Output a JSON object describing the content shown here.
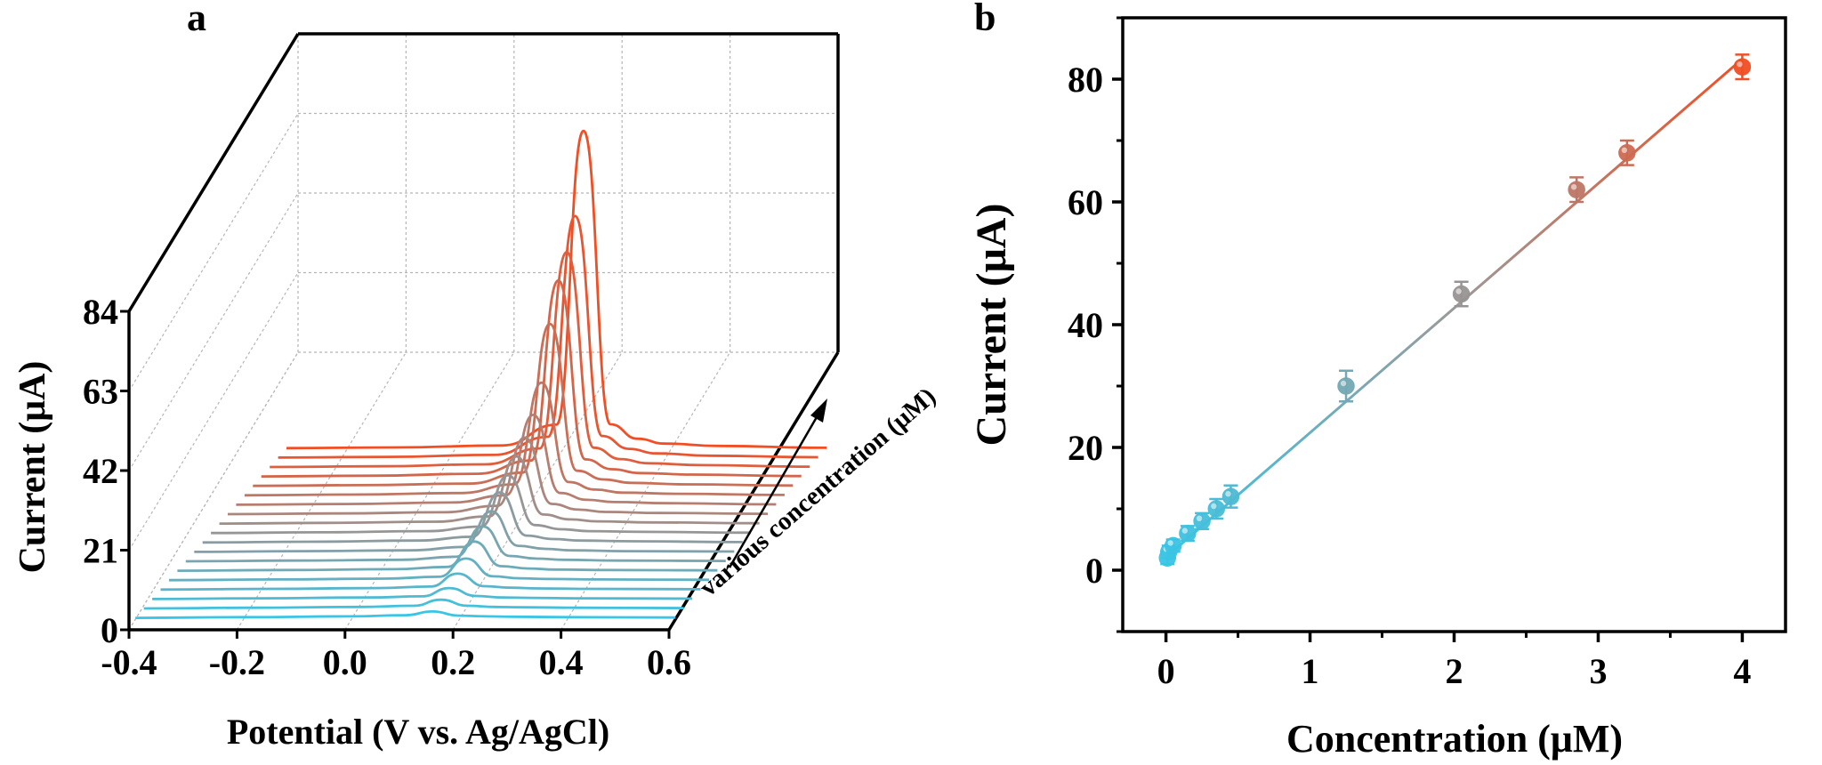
{
  "panels": {
    "a": {
      "label": "a",
      "chart_data": {
        "type": "line",
        "title": "",
        "xlabel": "Potential (V vs. Ag/AgCl)",
        "ylabel": "Current (μA)",
        "zlabel": "various concentration (μM)",
        "xlim": [
          -0.4,
          0.6
        ],
        "ylim": [
          0,
          84
        ],
        "xticks": [
          "-0.4",
          "-0.2",
          "0.0",
          "0.2",
          "0.4",
          "0.6"
        ],
        "yticks": [
          "0",
          "21",
          "42",
          "63",
          "84"
        ],
        "x": [
          -0.4,
          -0.2,
          0.0,
          0.1,
          0.15,
          0.2,
          0.25,
          0.3,
          0.4,
          0.6
        ],
        "series": [
          {
            "values": [
              0.3,
              0.5,
              0.7,
              1.0,
              2.0,
              0.9,
              0.7,
              0.6,
              0.5,
              0.4
            ]
          },
          {
            "values": [
              0.3,
              0.5,
              0.7,
              1.0,
              2.6,
              1.0,
              0.7,
              0.6,
              0.5,
              0.4
            ]
          },
          {
            "values": [
              0.3,
              0.5,
              0.7,
              1.0,
              3.2,
              1.1,
              0.7,
              0.6,
              0.5,
              0.4
            ]
          },
          {
            "values": [
              0.3,
              0.5,
              0.7,
              1.1,
              4.5,
              1.2,
              0.8,
              0.6,
              0.5,
              0.4
            ]
          },
          {
            "values": [
              0.3,
              0.5,
              0.7,
              1.2,
              6.0,
              1.3,
              0.8,
              0.6,
              0.5,
              0.4
            ]
          },
          {
            "values": [
              0.3,
              0.5,
              0.7,
              1.3,
              8.0,
              1.5,
              0.9,
              0.6,
              0.5,
              0.4
            ]
          },
          {
            "values": [
              0.3,
              0.5,
              0.7,
              1.5,
              9.5,
              1.7,
              1.0,
              0.7,
              0.5,
              0.4
            ]
          },
          {
            "values": [
              0.3,
              0.5,
              0.7,
              1.6,
              11.0,
              1.9,
              1.1,
              0.7,
              0.5,
              0.4
            ]
          },
          {
            "values": [
              0.3,
              0.5,
              0.8,
              1.8,
              13.5,
              2.1,
              1.2,
              0.8,
              0.6,
              0.4
            ]
          },
          {
            "values": [
              0.3,
              0.5,
              0.8,
              2.0,
              15.5,
              2.4,
              1.3,
              0.8,
              0.6,
              0.4
            ]
          },
          {
            "values": [
              0.3,
              0.5,
              0.8,
              2.2,
              18.0,
              2.7,
              1.4,
              0.9,
              0.6,
              0.4
            ]
          },
          {
            "values": [
              0.3,
              0.5,
              0.8,
              2.5,
              20.5,
              3.0,
              1.5,
              0.9,
              0.6,
              0.4
            ]
          },
          {
            "values": [
              0.3,
              0.5,
              0.9,
              2.8,
              24.0,
              3.4,
              1.6,
              1.0,
              0.7,
              0.4
            ]
          },
          {
            "values": [
              0.3,
              0.5,
              0.9,
              3.2,
              30.0,
              3.8,
              1.8,
              1.0,
              0.7,
              0.4
            ]
          },
          {
            "values": [
              0.3,
              0.5,
              0.9,
              3.8,
              43.0,
              4.3,
              2.0,
              1.1,
              0.7,
              0.4
            ]
          },
          {
            "values": [
              0.3,
              0.5,
              1.0,
              4.5,
              52.0,
              4.8,
              2.2,
              1.2,
              0.8,
              0.4
            ]
          },
          {
            "values": [
              0.3,
              0.5,
              1.0,
              5.2,
              57.0,
              5.4,
              2.4,
              1.3,
              0.8,
              0.4
            ]
          },
          {
            "values": [
              0.3,
              0.5,
              1.0,
              5.8,
              64.0,
              6.0,
              2.6,
              1.4,
              0.8,
              0.4
            ]
          },
          {
            "values": [
              0.3,
              0.5,
              1.0,
              6.5,
              84.0,
              6.6,
              2.8,
              1.5,
              0.9,
              0.4
            ]
          }
        ],
        "colors": [
          "#39c5e5",
          "#f24e24"
        ],
        "grid": true
      }
    },
    "b": {
      "label": "b",
      "chart_data": {
        "type": "scatter",
        "title": "",
        "xlabel": "Concentration (μM)",
        "ylabel": "Current (μA)",
        "xlim": [
          -0.3,
          4.3
        ],
        "ylim": [
          -10,
          90
        ],
        "xticks": [
          "0",
          "1",
          "2",
          "3",
          "4"
        ],
        "yticks": [
          "0",
          "20",
          "40",
          "60",
          "80"
        ],
        "x": [
          0.01,
          0.02,
          0.05,
          0.15,
          0.25,
          0.35,
          0.45,
          1.25,
          2.05,
          2.85,
          3.2,
          4.0
        ],
        "y": [
          2,
          3,
          4,
          6,
          8,
          10,
          12,
          30,
          45,
          62,
          68,
          82
        ],
        "error": [
          1.0,
          1.0,
          1.0,
          1.2,
          1.3,
          1.6,
          1.8,
          2.5,
          2.0,
          2.0,
          2.0,
          2.0
        ],
        "fit": {
          "x": [
            0,
            4
          ],
          "y": [
            2.1,
            83.3
          ]
        },
        "colors": [
          "#39c5e5",
          "#f24e24"
        ],
        "grid": false
      }
    }
  }
}
